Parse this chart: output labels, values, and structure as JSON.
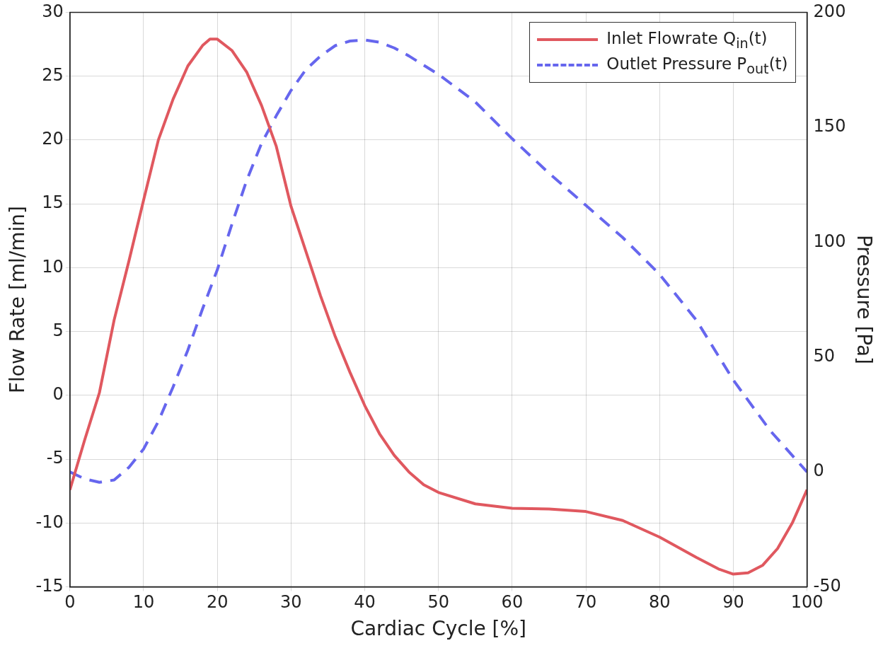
{
  "chart_data": {
    "type": "line",
    "xlabel": "Cardiac Cycle [%]",
    "ylabel": "Flow Rate [ml/min]",
    "y2label": "Pressure [Pa]",
    "xlim": [
      0,
      100
    ],
    "xticks": [
      0,
      10,
      20,
      30,
      40,
      50,
      60,
      70,
      80,
      90,
      100
    ],
    "ylim": [
      -15,
      30
    ],
    "yticks": [
      -15,
      -10,
      -5,
      0,
      5,
      10,
      15,
      20,
      25,
      30
    ],
    "y2lim": [
      -50,
      200
    ],
    "y2ticks": [
      -50,
      0,
      50,
      100,
      150,
      200
    ],
    "grid": true,
    "legend": "top right",
    "marker": "none",
    "series": [
      {
        "name": "Inlet Flowrate Q$_{in}$(t)",
        "color": "#e0585f",
        "line_style": "solid",
        "x": [
          0,
          2,
          4,
          6,
          8,
          10,
          12,
          14,
          16,
          18,
          19,
          20,
          22,
          24,
          26,
          28,
          30,
          32,
          34,
          36,
          38,
          40,
          42,
          44,
          46,
          48,
          50,
          55,
          60,
          65,
          70,
          75,
          80,
          85,
          88,
          90,
          92,
          94,
          96,
          98,
          100
        ],
        "values": [
          -7.4,
          -3.5,
          0.2,
          5.9,
          10.5,
          15.3,
          20,
          23.2,
          25.8,
          27.4,
          27.9,
          27.9,
          27,
          25.3,
          22.7,
          19.5,
          14.8,
          11.3,
          7.8,
          4.6,
          1.8,
          -0.8,
          -3,
          -4.7,
          -6,
          -7,
          -7.6,
          -8.5,
          -8.85,
          -8.9,
          -9.1,
          -9.8,
          -11.1,
          -12.7,
          -13.6,
          -14,
          -13.9,
          -13.3,
          -12,
          -10,
          -7.4
        ]
      },
      {
        "name": "Outlet Pressure P$_{out}$(t)",
        "color": "#6666ee",
        "line_style": "dashed",
        "axis": "y2",
        "x": [
          0,
          2,
          4,
          6,
          8,
          10,
          12,
          14,
          16,
          18,
          20,
          22,
          24,
          26,
          28,
          30,
          32,
          34,
          36,
          38,
          40,
          42,
          44,
          46,
          48,
          50,
          55,
          60,
          65,
          70,
          75,
          80,
          85,
          90,
          95,
          100
        ],
        "values": [
          0,
          -3,
          -4.5,
          -3.5,
          2,
          10,
          22,
          37,
          53,
          71,
          88,
          108,
          127,
          143,
          155,
          166,
          175,
          181,
          185.5,
          187.5,
          188,
          187,
          184.5,
          181,
          177,
          173,
          161,
          145,
          130,
          116,
          102,
          86,
          66,
          40,
          18,
          0
        ]
      }
    ]
  }
}
